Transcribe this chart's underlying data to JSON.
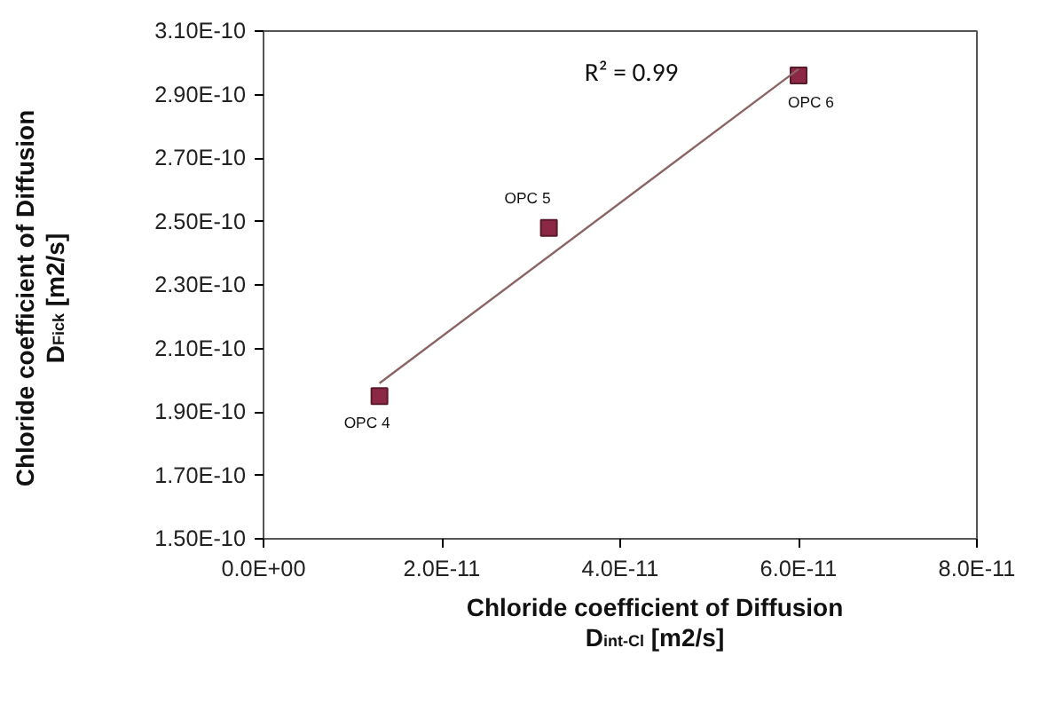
{
  "chart_data": {
    "type": "scatter",
    "xlabel": "Chloride coefficient of Diffusion\nD$_{int-Cl}$ [m2/s]",
    "ylabel": "Chloride coefficient of Diffusion\nD$_{Fick}$ [m2/s]",
    "series": [
      {
        "color": "#8b2846",
        "marker": "square",
        "x": [
          1.3e-11,
          3.2e-11,
          6e-11
        ],
        "values": [
          1.95e-10,
          2.48e-10,
          2.96e-10
        ]
      },
      {
        "type": "line",
        "color": "#8a6464",
        "line_style": "solid",
        "marker": "none",
        "x": [
          1.3e-11,
          6e-11
        ],
        "values": [
          1.99e-10,
          2.98e-10
        ]
      }
    ],
    "annotations": [
      {
        "text": "OPC 4",
        "x": 1.3e-11,
        "y": 1.95e-10
      },
      {
        "text": "OPC 5",
        "x": 3.2e-11,
        "y": 2.48e-10
      },
      {
        "text": "OPC 6",
        "x": 6e-11,
        "y": 2.96e-10
      },
      "R² = 0.99"
    ],
    "xlim": [
      0,
      8e-11
    ],
    "xticks": [
      {
        "value": 0,
        "label": "0.0E+00"
      },
      {
        "value": 2e-11,
        "label": "2.0E-11"
      },
      {
        "value": 4e-11,
        "label": "4.0E-11"
      },
      {
        "value": 6e-11,
        "label": "6.0E-11"
      },
      {
        "value": 8e-11,
        "label": "8.0E-11"
      }
    ],
    "ylim": [
      1.5e-10,
      3.1e-10
    ],
    "yticks": [
      {
        "value": 1.5e-10,
        "label": "1.50E-10"
      },
      {
        "value": 1.7e-10,
        "label": "1.70E-10"
      },
      {
        "value": 1.9e-10,
        "label": "1.90E-10"
      },
      {
        "value": 2.1e-10,
        "label": "2.10E-10"
      },
      {
        "value": 2.3e-10,
        "label": "2.30E-10"
      },
      {
        "value": 2.5e-10,
        "label": "2.50E-10"
      },
      {
        "value": 2.7e-10,
        "label": "2.70E-10"
      },
      {
        "value": 2.9e-10,
        "label": "2.90E-10"
      },
      {
        "value": 3.1e-10,
        "label": "3.10E-10"
      }
    ],
    "grid": false
  }
}
